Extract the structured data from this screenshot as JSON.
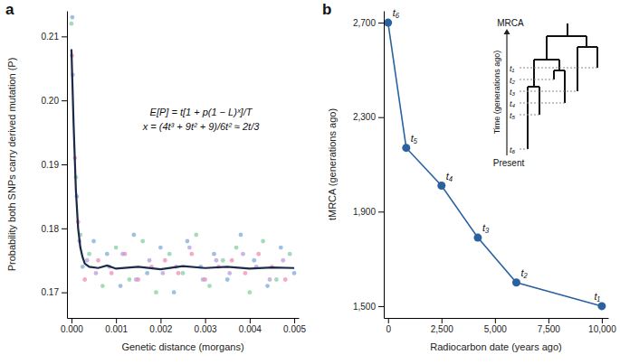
{
  "chart_data": [
    {
      "type": "scatter",
      "title": "a",
      "x_label": "Genetic distance (morgans)",
      "y_label": "Probability both SNPs carry derived mutation (P)",
      "annotations": [
        "E[P] = t[1 + p(1 − L)ˣ]/T",
        "x = (4t³ + 9t² + 9)/6t² ≈ 2t/3"
      ],
      "xlim": [
        -0.0001,
        0.0051
      ],
      "xticks": [
        {
          "value": 0,
          "label": "0.000"
        },
        {
          "value": 0.001,
          "label": "0.001"
        },
        {
          "value": 0.002,
          "label": "0.002"
        },
        {
          "value": 0.003,
          "label": "0.003"
        },
        {
          "value": 0.004,
          "label": "0.004"
        },
        {
          "value": 0.005,
          "label": "0.005"
        }
      ],
      "ylim": [
        0.166,
        0.214
      ],
      "yticks": [
        0.17,
        0.18,
        0.19,
        {
          "value": 0.2,
          "label": "0.20"
        },
        0.21
      ],
      "grid": false,
      "series": [
        {
          "type": "scatter",
          "color": "#86cfa0",
          "marker": "circle",
          "x": [
            0,
            0.0001,
            0.0002,
            0.0004,
            0.0007,
            0.001,
            0.0013,
            0.0016,
            0.0019,
            0.0022,
            0.0025,
            0.0028,
            0.0031,
            0.0034,
            0.0037,
            0.004,
            0.0043,
            0.0046,
            0.0049
          ],
          "values": [
            0.212,
            0.188,
            0.179,
            0.176,
            0.171,
            0.177,
            0.172,
            0.178,
            0.17,
            0.176,
            0.173,
            0.179,
            0.171,
            0.175,
            0.177,
            0.17,
            0.178,
            0.172,
            0.176
          ]
        },
        {
          "type": "scatter",
          "color": "#7fa9d9",
          "marker": "circle",
          "x": [
            2e-05,
            0.00012,
            0.00025,
            0.0005,
            0.0008,
            0.0011,
            0.0014,
            0.0017,
            0.002,
            0.0023,
            0.0026,
            0.0029,
            0.0032,
            0.0035,
            0.0038,
            0.0041,
            0.0044,
            0.0047,
            0.005
          ],
          "values": [
            0.213,
            0.185,
            0.174,
            0.178,
            0.176,
            0.171,
            0.179,
            0.173,
            0.177,
            0.17,
            0.178,
            0.174,
            0.176,
            0.172,
            0.179,
            0.175,
            0.171,
            0.177,
            0.173
          ]
        },
        {
          "type": "scatter",
          "color": "#f08cb4",
          "marker": "circle",
          "x": [
            1e-05,
            8e-05,
            0.00015,
            0.0003,
            0.0006,
            0.0009,
            0.0012,
            0.0015,
            0.0018,
            0.0021,
            0.0024,
            0.0027,
            0.003,
            0.0033,
            0.0036,
            0.0039,
            0.0042,
            0.0045,
            0.0048
          ],
          "values": [
            0.207,
            0.191,
            0.181,
            0.172,
            0.175,
            0.173,
            0.176,
            0.172,
            0.174,
            0.175,
            0.173,
            0.176,
            0.172,
            0.174,
            0.175,
            0.173,
            0.176,
            0.174,
            0.172
          ]
        },
        {
          "type": "scatter",
          "color": "#b89cdb",
          "marker": "circle",
          "x": [
            3e-05,
            0.00018,
            0.00035,
            0.00055,
            0.00085,
            0.00115,
            0.00145,
            0.00175,
            0.00205,
            0.00235,
            0.00265,
            0.00295,
            0.00325,
            0.00355,
            0.00385,
            0.00415,
            0.00445,
            0.00475
          ],
          "values": [
            0.204,
            0.178,
            0.175,
            0.173,
            0.174,
            0.176,
            0.172,
            0.175,
            0.173,
            0.174,
            0.177,
            0.172,
            0.175,
            0.173,
            0.176,
            0.174,
            0.172,
            0.175
          ]
        },
        {
          "type": "line",
          "color": "#1b2a4a",
          "line_style": "solid",
          "x": [
            0,
            5e-05,
            0.0001,
            0.00015,
            0.0002,
            0.00025,
            0.0003,
            0.0004,
            0.0006,
            0.0008,
            0.001,
            0.0015,
            0.002,
            0.0025,
            0.003,
            0.0035,
            0.004,
            0.0045,
            0.005
          ],
          "values": [
            0.208,
            0.196,
            0.186,
            0.18,
            0.177,
            0.1755,
            0.1745,
            0.174,
            0.1738,
            0.1742,
            0.1737,
            0.174,
            0.1736,
            0.1741,
            0.1738,
            0.174,
            0.1737,
            0.1739,
            0.1738
          ]
        }
      ]
    },
    {
      "type": "line",
      "title": "b",
      "x_label": "Radiocarbon date (years ago)",
      "y_label": "tMRCA (generations ago)",
      "xlim": [
        -200,
        10300
      ],
      "xticks": [
        0,
        {
          "value": 2500,
          "label": "2,500"
        },
        {
          "value": 5000,
          "label": "5,000"
        },
        {
          "value": 7500,
          "label": "7,500"
        },
        {
          "value": 10000,
          "label": "10,000"
        }
      ],
      "ylim": [
        1450,
        2750
      ],
      "yticks": [
        {
          "value": 1500,
          "label": "1,500"
        },
        {
          "value": 1900,
          "label": "1,900"
        },
        {
          "value": 2300,
          "label": "2,300"
        },
        {
          "value": 2700,
          "label": "2,700"
        }
      ],
      "grid": false,
      "color": "#2a62a0",
      "marker": "circle",
      "line_style": "solid",
      "x": [
        0,
        850,
        2500,
        4200,
        6000,
        10000
      ],
      "values": [
        2700,
        2170,
        2010,
        1790,
        1600,
        1500
      ],
      "point_labels": [
        "t₆",
        "t₅",
        "t₄",
        "t₃",
        "t₂",
        "t₁"
      ],
      "inset": {
        "top": "MRCA",
        "bottom": "Present",
        "axis_title": "Time (generations ago)",
        "ticks": [
          "t₁",
          "t₂",
          "t₃",
          "t₄",
          "t₅",
          "t₆"
        ]
      }
    }
  ]
}
